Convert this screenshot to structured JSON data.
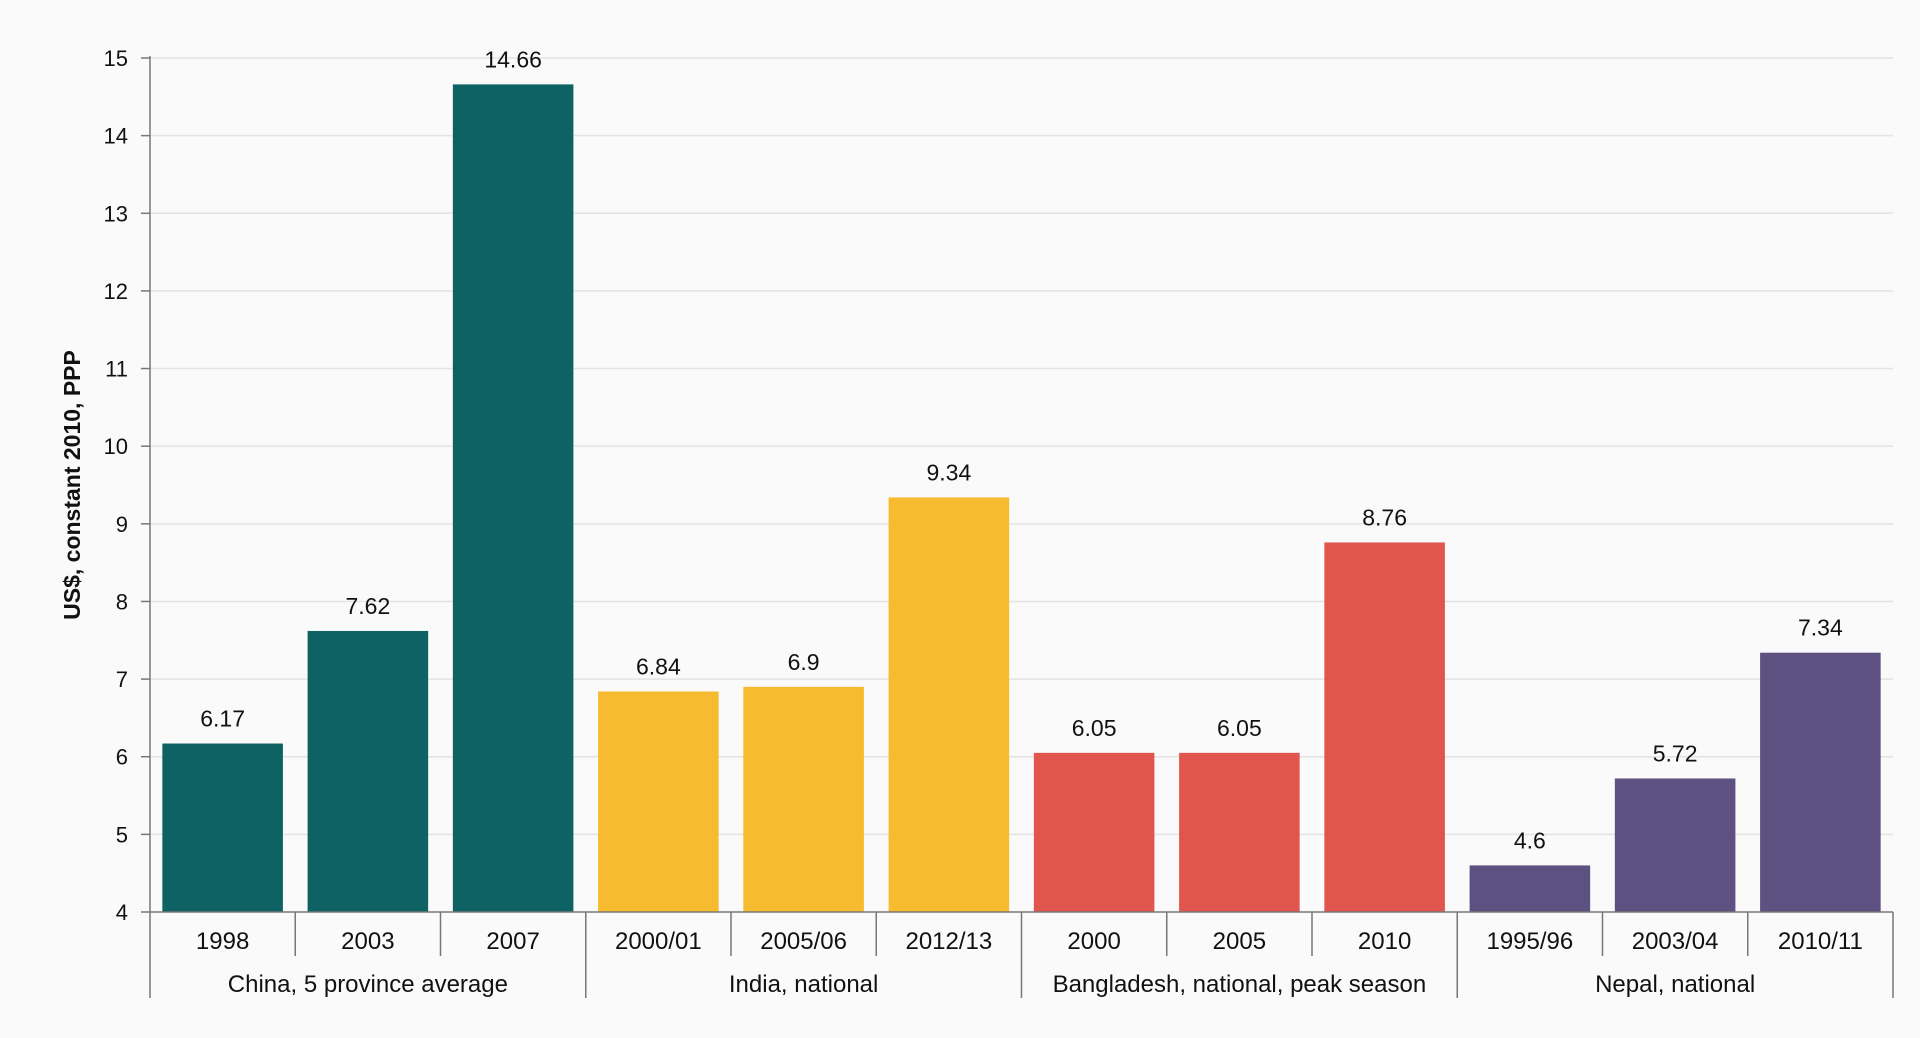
{
  "chart_data": {
    "type": "bar",
    "ylabel": "US$, constant 2010, PPP",
    "ylim": [
      4,
      15
    ],
    "yticks": [
      4,
      5,
      6,
      7,
      8,
      9,
      10,
      11,
      12,
      13,
      14,
      15
    ],
    "grid": true,
    "groups": [
      {
        "name": "China, 5 province average",
        "color": "#0e6263",
        "categories": [
          "1998",
          "2003",
          "2007"
        ],
        "values": [
          6.17,
          7.62,
          14.66
        ],
        "labels": [
          "6.17",
          "7.62",
          "14.66"
        ]
      },
      {
        "name": "India, national",
        "color": "#f6bb2f",
        "categories": [
          "2000/01",
          "2005/06",
          "2012/13"
        ],
        "values": [
          6.84,
          6.9,
          9.34
        ],
        "labels": [
          "6.84",
          "6.9",
          "9.34"
        ]
      },
      {
        "name": "Bangladesh, national, peak season",
        "color": "#e0554d",
        "categories": [
          "2000",
          "2005",
          "2010"
        ],
        "values": [
          6.05,
          6.05,
          8.76
        ],
        "labels": [
          "6.05",
          "6.05",
          "8.76"
        ]
      },
      {
        "name": "Nepal, national",
        "color": "#5d5182",
        "categories": [
          "1995/96",
          "2003/04",
          "2010/11"
        ],
        "values": [
          4.6,
          5.72,
          7.34
        ],
        "labels": [
          "4.6",
          "5.72",
          "7.34"
        ]
      }
    ]
  }
}
